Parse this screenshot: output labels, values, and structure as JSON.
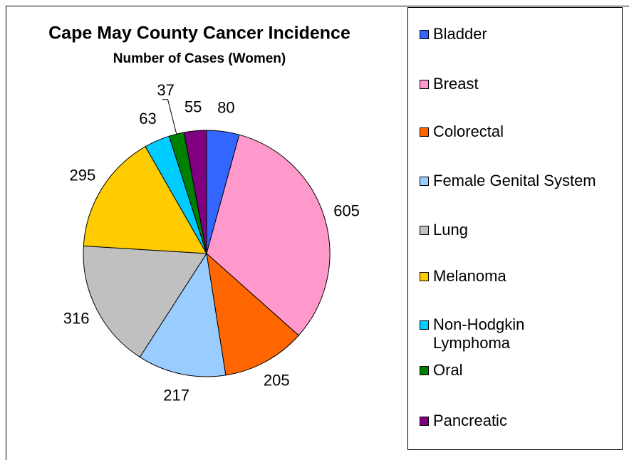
{
  "chart_data": {
    "type": "pie",
    "title": "Cape May County Cancer Incidence",
    "subtitle": "Number of Cases (Women)",
    "categories": [
      "Bladder",
      "Breast",
      "Colorectal",
      "Female Genital System",
      "Lung",
      "Melanoma",
      "Non-Hodgkin Lymphoma",
      "Oral",
      "Pancreatic"
    ],
    "values": [
      80,
      605,
      205,
      217,
      316,
      295,
      63,
      37,
      55
    ],
    "colors": [
      "#3366ff",
      "#ff99cc",
      "#ff6600",
      "#99ccff",
      "#c0c0c0",
      "#ffcc00",
      "#00ccff",
      "#008000",
      "#800080"
    ],
    "legend": "right"
  }
}
